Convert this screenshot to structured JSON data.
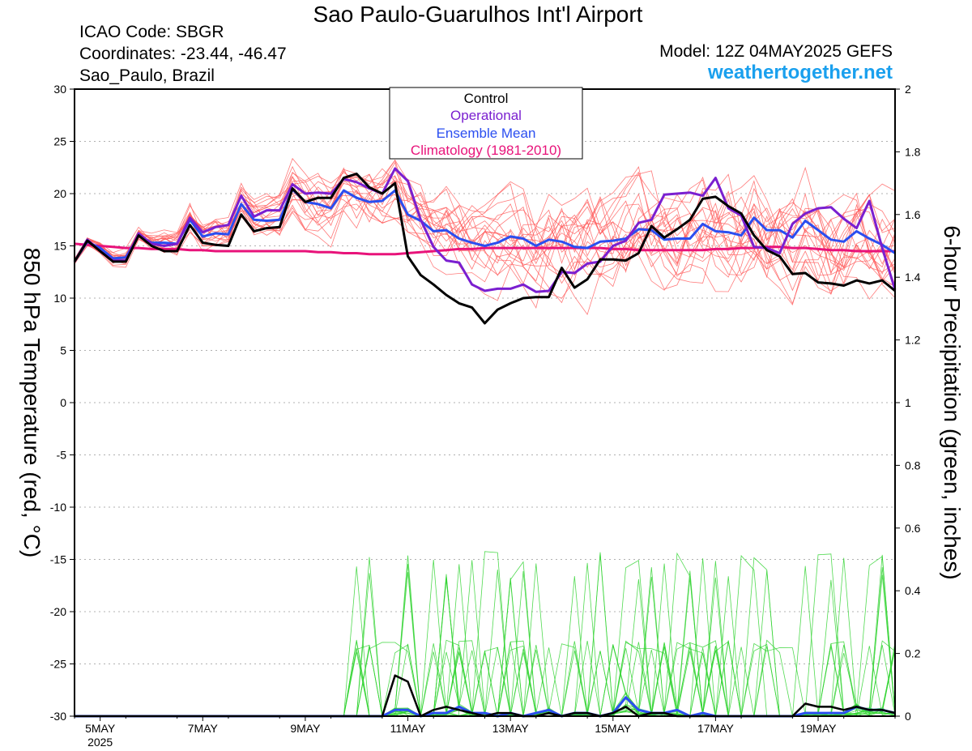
{
  "header": {
    "title": "Sao Paulo-Guarulhos Int'l Airport",
    "icao": "ICAO Code: SBGR",
    "coordinates": "Coordinates: -23.44, -46.47",
    "location": "Sao_Paulo, Brazil",
    "model": "Model: 12Z 04MAY2025 GEFS",
    "site": "weathertogether.net"
  },
  "colors": {
    "control": "#000000",
    "operational": "#7a1fd0",
    "ensemble_mean": "#2a4ef0",
    "climatology": "#e8137a",
    "members_temp": "#ff5a5a",
    "members_precip": "#33d433"
  },
  "chart_data": {
    "type": "line",
    "title": "Sao Paulo-Guarulhos Int'l Airport",
    "ylabel": "850 hPa Temperature (red, °C)",
    "y2label": "6-hour Precipitation (green, inches)",
    "ylim": [
      -30,
      30
    ],
    "y2lim": [
      0,
      2
    ],
    "yticks": [
      "30",
      "25",
      "20",
      "15",
      "10",
      "5",
      "0",
      "-5",
      "-10",
      "-15",
      "-20",
      "-25",
      "-30"
    ],
    "y2ticks": [
      "2",
      "1.8",
      "1.6",
      "1.4",
      "1.2",
      "1",
      "0.8",
      "0.6",
      "0.4",
      "0.2",
      "0"
    ],
    "xticks": [
      "5MAY",
      "7MAY",
      "9MAY",
      "11MAY",
      "13MAY",
      "15MAY",
      "17MAY",
      "19MAY"
    ],
    "xtick_year": "2025",
    "grid": true,
    "legend_position": "top-center",
    "legend": [
      "Control",
      "Operational",
      "Ensemble Mean",
      "Climatology (1981-2010)"
    ],
    "x_start": "04MAY2025 12Z",
    "x_step_hours": 6,
    "temperature": {
      "control": [
        13.5,
        15.5,
        14.5,
        13.5,
        13.5,
        16,
        15,
        14.5,
        14.5,
        17,
        15.3,
        15.1,
        15,
        18,
        16.4,
        16.7,
        16.8,
        20.5,
        19.2,
        19.6,
        19.6,
        21.5,
        21.9,
        20.6,
        20,
        21,
        14,
        12.2,
        11.3,
        10.3,
        9.5,
        9.1,
        7.6,
        8.9,
        9.5,
        10,
        10.1,
        10.1,
        12.9,
        11,
        11.8,
        13.7,
        13.7,
        13.6,
        14.3,
        16.9,
        15.8,
        16.6,
        17.5,
        19.5,
        19.7,
        18.8,
        18.1,
        16,
        14.6,
        14,
        12.3,
        12.4,
        11.5,
        11.4,
        11.2,
        11.7,
        11.4,
        11.7,
        10.7
      ],
      "operational": [
        13.5,
        15.6,
        14.5,
        13.6,
        13.6,
        16.2,
        15.2,
        15,
        15.2,
        17.7,
        16.3,
        16.8,
        17,
        19.8,
        17.8,
        18.4,
        18.4,
        20.9,
        20,
        20.1,
        20,
        21.4,
        21.1,
        20.5,
        20,
        22.4,
        21.2,
        17.5,
        14.9,
        13.6,
        13.4,
        11.3,
        10.7,
        10.9,
        10.9,
        11.3,
        10.6,
        10.7,
        12.5,
        12.4,
        13.3,
        13.5,
        15,
        15.5,
        17.2,
        17.5,
        19.9,
        20,
        20.1,
        19.8,
        21.5,
        18.6,
        17.9,
        14.9,
        14.8,
        14.3,
        17.1,
        18.1,
        18.6,
        18.7,
        17.6,
        16.7,
        19.3,
        14.8,
        10.8
      ],
      "ensemble_mean": [
        13.5,
        15.4,
        14.8,
        13.8,
        13.9,
        16,
        15.3,
        15.3,
        15.2,
        17.5,
        15.9,
        16.2,
        16.1,
        19,
        17.5,
        17.4,
        17.5,
        20.4,
        19.2,
        19,
        18.6,
        20.3,
        19.6,
        19.2,
        19.3,
        20.3,
        18,
        17.4,
        16.4,
        16.5,
        15.7,
        15.3,
        15,
        15.3,
        15.9,
        15.7,
        15,
        15.6,
        15.4,
        14.9,
        14.8,
        15.4,
        15.5,
        15.7,
        16.6,
        16.5,
        15.6,
        15.7,
        15.7,
        17.1,
        16.4,
        16.3,
        16,
        17.7,
        16.5,
        16.5,
        15.8,
        17.4,
        16.5,
        15.6,
        15.4,
        16.4,
        15.7,
        15.1,
        14.3
      ],
      "climatology": [
        15.2,
        15.1,
        15,
        14.9,
        14.8,
        14.8,
        14.7,
        14.7,
        14.7,
        14.6,
        14.6,
        14.5,
        14.5,
        14.5,
        14.5,
        14.5,
        14.5,
        14.5,
        14.5,
        14.4,
        14.4,
        14.3,
        14.3,
        14.2,
        14.2,
        14.2,
        14.3,
        14.4,
        14.5,
        14.6,
        14.7,
        14.7,
        14.8,
        14.8,
        14.8,
        14.8,
        14.8,
        14.8,
        14.8,
        14.8,
        14.8,
        14.8,
        14.7,
        14.7,
        14.6,
        14.6,
        14.6,
        14.6,
        14.6,
        14.6,
        14.7,
        14.7,
        14.8,
        14.8,
        14.9,
        14.9,
        14.8,
        14.8,
        14.7,
        14.6,
        14.6,
        14.5,
        14.5,
        14.5,
        14.5
      ]
    },
    "precipitation": {
      "control": [
        0.0,
        0.0,
        0.0,
        0.0,
        0.0,
        0.0,
        0.0,
        0.0,
        0.0,
        0.0,
        0.0,
        0.0,
        0.0,
        0.0,
        0.0,
        0.0,
        0.0,
        0.0,
        0.0,
        0.0,
        0.0,
        0.0,
        0.0,
        0.0,
        0.0,
        0.13,
        0.11,
        0.0,
        0.02,
        0.03,
        0.02,
        0.01,
        0.0,
        0.01,
        0.01,
        0.0,
        0.0,
        0.01,
        0.0,
        0.01,
        0.01,
        0.0,
        0.01,
        0.03,
        0.0,
        0.01,
        0.01,
        0.0,
        0.0,
        0.0,
        0.0,
        0.0,
        0.0,
        0.0,
        0.0,
        0.0,
        0.0,
        0.04,
        0.03,
        0.03,
        0.02,
        0.03,
        0.02,
        0.02,
        0.01
      ],
      "ensemble_mean": [
        0.0,
        0.0,
        0.0,
        0.0,
        0.0,
        0.0,
        0.0,
        0.0,
        0.0,
        0.0,
        0.0,
        0.0,
        0.0,
        0.0,
        0.0,
        0.0,
        0.0,
        0.0,
        0.0,
        0.0,
        0.0,
        0.0,
        0.0,
        0.0,
        0.0,
        0.02,
        0.02,
        0.0,
        0.01,
        0.01,
        0.03,
        0.01,
        0.01,
        0.0,
        0.01,
        0.0,
        0.01,
        0.02,
        0.0,
        0.01,
        0.01,
        0.0,
        0.01,
        0.06,
        0.02,
        0.01,
        0.01,
        0.02,
        0.0,
        0.01,
        0.0,
        0.0,
        0.0,
        0.0,
        0.0,
        0.0,
        0.0,
        0.01,
        0.01,
        0.01,
        0.01,
        0.03,
        0.02,
        0.02,
        0.01
      ]
    }
  }
}
